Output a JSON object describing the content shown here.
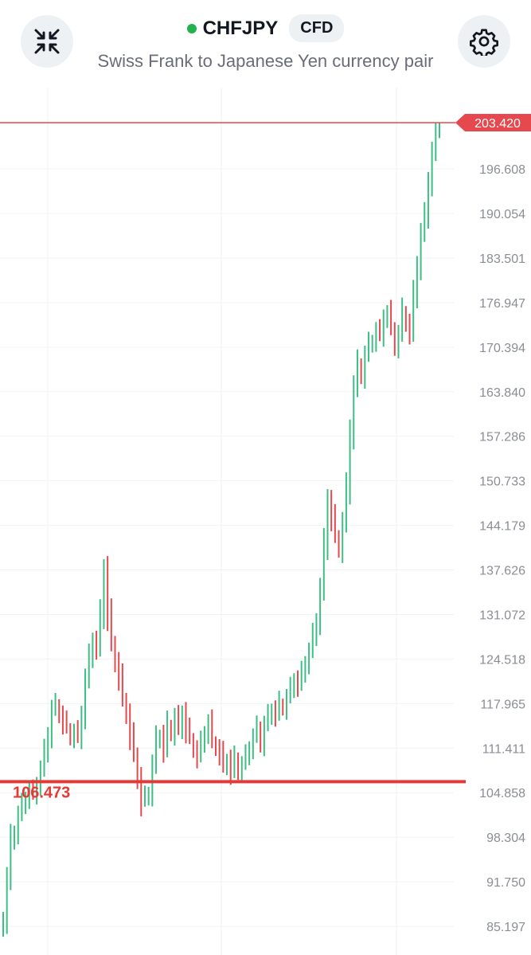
{
  "header": {
    "symbol": "CHFJPY",
    "badge": "CFD",
    "subtitle": "Swiss Frank to Japanese Yen currency pair",
    "left_icon": "collapse-arrows-icon",
    "right_icon": "gear-icon",
    "status_color": "#22b14c"
  },
  "chart_data": {
    "type": "candlestick",
    "title": "",
    "up_color": "#3dbf84",
    "down_color": "#e5484d",
    "price_scale": {
      "ticks": [
        "196.608",
        "190.054",
        "183.501",
        "176.947",
        "170.394",
        "163.840",
        "157.286",
        "150.733",
        "144.179",
        "137.626",
        "131.072",
        "124.518",
        "117.965",
        "111.411",
        "104.858",
        "98.304",
        "91.750",
        "85.197"
      ],
      "min": 85.197,
      "max": 203.42
    },
    "current_price": {
      "label": "203.420",
      "value": 203.42,
      "color": "#e5484d"
    },
    "horizontal_line": {
      "label": "106.473",
      "value": 106.473,
      "color": "#e53935"
    },
    "grid": true,
    "closes": [
      86.5,
      92.0,
      97.8,
      99.2,
      101.5,
      103.0,
      104.2,
      105.1,
      104.5,
      106.3,
      108.2,
      110.8,
      113.5,
      116.9,
      117.8,
      116.4,
      115.2,
      114.3,
      113.1,
      113.8,
      112.9,
      116.5,
      121.3,
      124.7,
      127.4,
      126.2,
      131.0,
      137.6,
      131.2,
      126.9,
      124.1,
      121.8,
      118.6,
      116.4,
      113.2,
      110.4,
      107.0,
      103.5,
      104.2,
      105.0,
      108.8,
      112.6,
      113.4,
      111.2,
      114.8,
      113.7,
      115.9,
      114.2,
      116.7,
      114.1,
      112.8,
      111.3,
      110.2,
      112.1,
      113.8,
      115.1,
      112.4,
      111.5,
      110.6,
      108.7,
      109.8,
      107.9,
      109.9,
      108.1,
      109.0,
      110.2,
      111.6,
      113.0,
      114.4,
      112.2,
      114.7,
      116.1,
      117.2,
      116.3,
      118.0,
      117.4,
      118.8,
      120.1,
      121.6,
      120.7,
      122.4,
      124.1,
      125.6,
      127.9,
      130.3,
      134.7,
      141.2,
      147.9,
      145.3,
      142.6,
      140.8,
      144.5,
      149.6,
      157.9,
      164.2,
      167.9,
      166.3,
      169.1,
      170.8,
      171.5,
      172.8,
      172.0,
      174.9,
      175.4,
      173.1,
      170.6,
      172.3,
      175.6,
      174.0,
      172.6,
      177.9,
      182.5,
      186.9,
      189.7,
      194.8,
      198.9,
      202.4,
      203.42
    ]
  }
}
